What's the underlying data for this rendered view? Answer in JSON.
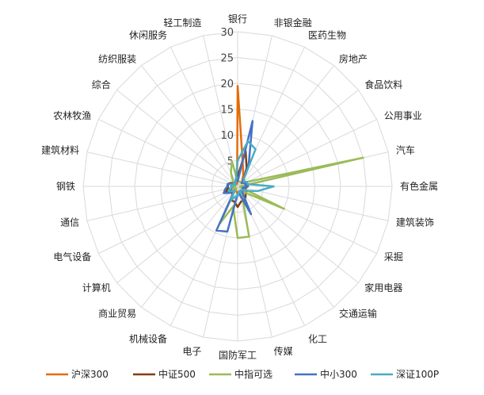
{
  "chart_data": {
    "type": "radar",
    "categories": [
      "银行",
      "非银金融",
      "医药生物",
      "房地产",
      "食品饮料",
      "公用事业",
      "汽车",
      "有色金属",
      "建筑装饰",
      "采掘",
      "家用电器",
      "交通运输",
      "化工",
      "传媒",
      "国防军工",
      "电子",
      "机械设备",
      "商业贸易",
      "计算机",
      "电气设备",
      "通信",
      "钢铁",
      "建筑材料",
      "农林牧渔",
      "综合",
      "纺织服装",
      "休闲服务",
      "轻工制造"
    ],
    "r_ticks": [
      0,
      5,
      10,
      15,
      20,
      25,
      30
    ],
    "rlim": [
      0,
      30
    ],
    "grid": true,
    "legend_position": "bottom",
    "series": [
      {
        "name": "沪深300",
        "color": "#E36C0A",
        "values": [
          19.5,
          4.5,
          2.5,
          1.5,
          1,
          1.5,
          2,
          2,
          1,
          1.5,
          1.5,
          1,
          1,
          1,
          1.5,
          1,
          1,
          0.5,
          1,
          1,
          0.5,
          0.5,
          1,
          0.5,
          0.5,
          0.5,
          0.5,
          0.5
        ]
      },
      {
        "name": "中证500",
        "color": "#843C0C",
        "values": [
          2,
          7,
          4,
          2,
          1.5,
          2,
          2,
          2,
          1.5,
          2,
          2,
          2.5,
          3,
          3,
          4,
          3,
          3,
          1.5,
          2,
          2.5,
          2,
          2,
          2,
          1.5,
          1,
          1,
          1,
          1.5
        ]
      },
      {
        "name": "中指可选",
        "color": "#9BBB59",
        "values": [
          1,
          1,
          1,
          1,
          1,
          2,
          25,
          0.5,
          0.5,
          10,
          2,
          1.5,
          2,
          10,
          10,
          4,
          8,
          0.5,
          1,
          1,
          0.5,
          0.5,
          1,
          1,
          0.5,
          1.5,
          3,
          5
        ]
      },
      {
        "name": "中小300",
        "color": "#4472C4",
        "values": [
          1,
          13,
          5,
          2,
          1,
          2,
          1.5,
          2,
          1,
          1.5,
          1,
          1.5,
          6,
          1.5,
          1.5,
          9,
          9.5,
          1,
          2,
          3,
          2.5,
          2,
          2,
          1,
          0.5,
          1,
          1,
          1.5
        ]
      },
      {
        "name": "深证100P",
        "color": "#4BACC6",
        "values": [
          5,
          9,
          8,
          2,
          1.5,
          2,
          2,
          7,
          4,
          2,
          1,
          1,
          1.5,
          1,
          2,
          2,
          3,
          1,
          1.5,
          2,
          1.5,
          1,
          1.5,
          1,
          0.5,
          1,
          1,
          1.5
        ]
      }
    ]
  }
}
